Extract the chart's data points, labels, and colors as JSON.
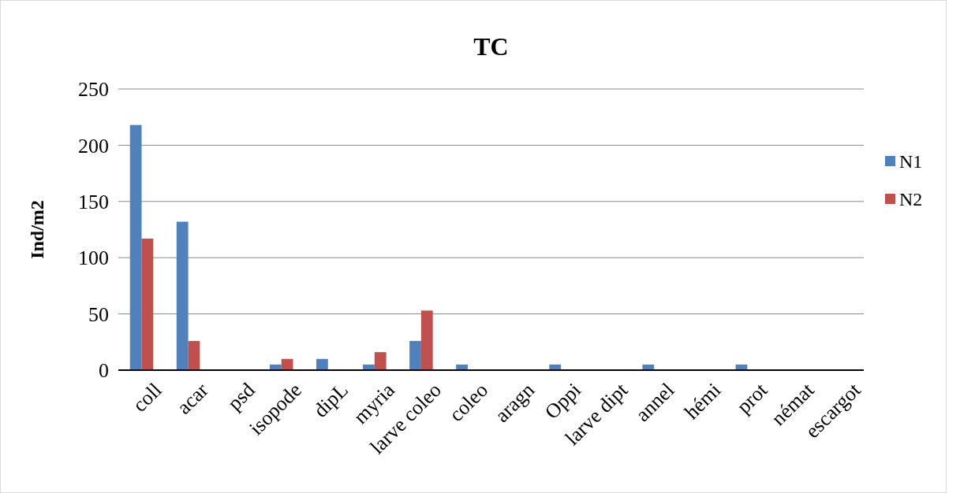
{
  "chart_data": {
    "type": "bar",
    "title": "TC",
    "ylabel": "Ind/m2",
    "categories": [
      "coll",
      "acar",
      "psd",
      "isopode",
      "dipL",
      "myria",
      "larve coleo",
      "coleo",
      "aragn",
      "Oppi",
      "larve dipt",
      "annel",
      "hémi",
      "prot",
      "némat",
      "escargot"
    ],
    "series": [
      {
        "name": "N1",
        "color": "#4f81bd",
        "values": [
          218,
          132,
          0,
          5,
          10,
          5,
          26,
          5,
          0,
          5,
          0,
          5,
          0,
          5,
          0,
          0
        ]
      },
      {
        "name": "N2",
        "color": "#c0504d",
        "values": [
          117,
          26,
          0,
          10,
          0,
          16,
          53,
          0,
          0,
          0,
          0,
          0,
          0,
          0,
          0,
          0
        ]
      }
    ],
    "ylim": [
      0,
      250
    ],
    "yticks": [
      0,
      50,
      100,
      150,
      200,
      250
    ],
    "grid": "y",
    "legend": "right"
  }
}
